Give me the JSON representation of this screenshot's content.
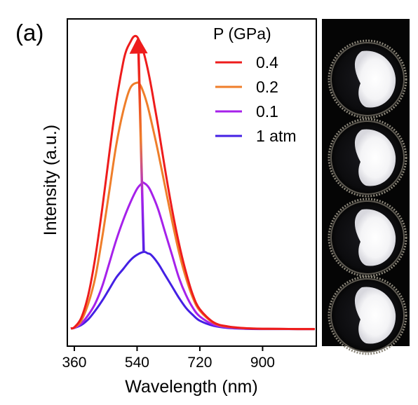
{
  "panel_label": "(a)",
  "colors": {
    "0.4": "#ee1c1c",
    "0.2": "#ef7e2a",
    "0.1": "#a621ea",
    "1 atm": "#4420e4",
    "photo_background": "#050505"
  },
  "chart_data": {
    "type": "line",
    "title": "",
    "xlabel": "Wavelength (nm)",
    "ylabel": "Intensity (a.u.)",
    "xlim": [
      350,
      1050
    ],
    "ylim": [
      0,
      1.07
    ],
    "x_ticks": [
      360,
      540,
      720,
      900
    ],
    "x_tick_labels": [
      "360",
      "540",
      "720",
      "900"
    ],
    "y_ticks_visible": false,
    "grid": false,
    "legend_title": "P (GPa)",
    "legend_position": "top-right",
    "series": [
      {
        "name": "0.4",
        "color": "#ee1c1c",
        "x": [
          350,
          360,
          380,
          400,
          420,
          440,
          460,
          480,
          500,
          510,
          520,
          530,
          540,
          550,
          560,
          570,
          580,
          590,
          600,
          620,
          640,
          660,
          680,
          700,
          720,
          760,
          800,
          850,
          900,
          1000,
          1050
        ],
        "y": [
          0.003,
          0.007,
          0.04,
          0.12,
          0.25,
          0.42,
          0.61,
          0.79,
          0.93,
          0.975,
          1.0,
          1.02,
          1.02,
          0.995,
          0.96,
          0.91,
          0.85,
          0.78,
          0.71,
          0.56,
          0.42,
          0.3,
          0.2,
          0.12,
          0.07,
          0.024,
          0.01,
          0.004,
          0.002,
          0.001,
          0.001
        ]
      },
      {
        "name": "0.2",
        "color": "#ef7e2a",
        "x": [
          350,
          360,
          380,
          400,
          420,
          440,
          460,
          480,
          500,
          520,
          540,
          550,
          560,
          570,
          580,
          600,
          620,
          640,
          660,
          680,
          700,
          720,
          760,
          800,
          850,
          900,
          1000,
          1050
        ],
        "y": [
          0.003,
          0.006,
          0.03,
          0.09,
          0.18,
          0.32,
          0.48,
          0.64,
          0.76,
          0.84,
          0.86,
          0.85,
          0.82,
          0.78,
          0.73,
          0.62,
          0.5,
          0.38,
          0.27,
          0.18,
          0.11,
          0.065,
          0.022,
          0.009,
          0.004,
          0.002,
          0.001,
          0.001
        ]
      },
      {
        "name": "0.1",
        "color": "#a621ea",
        "x": [
          350,
          360,
          380,
          400,
          420,
          440,
          460,
          480,
          500,
          520,
          540,
          555,
          560,
          570,
          580,
          600,
          620,
          640,
          660,
          680,
          700,
          720,
          760,
          800,
          850,
          900,
          1000,
          1050
        ],
        "y": [
          0.003,
          0.005,
          0.02,
          0.05,
          0.09,
          0.15,
          0.23,
          0.31,
          0.38,
          0.44,
          0.49,
          0.51,
          0.51,
          0.5,
          0.48,
          0.42,
          0.34,
          0.26,
          0.18,
          0.12,
          0.075,
          0.045,
          0.016,
          0.007,
          0.003,
          0.002,
          0.001,
          0.001
        ]
      },
      {
        "name": "1 atm",
        "color": "#4420e4",
        "x": [
          350,
          360,
          380,
          400,
          420,
          440,
          460,
          480,
          500,
          520,
          540,
          560,
          570,
          580,
          600,
          620,
          640,
          660,
          680,
          700,
          720,
          760,
          800,
          850,
          900,
          1000,
          1050
        ],
        "y": [
          0.003,
          0.005,
          0.015,
          0.035,
          0.065,
          0.1,
          0.14,
          0.18,
          0.21,
          0.24,
          0.26,
          0.27,
          0.265,
          0.26,
          0.23,
          0.19,
          0.15,
          0.11,
          0.075,
          0.05,
          0.03,
          0.012,
          0.005,
          0.002,
          0.001,
          0.001,
          0.001
        ]
      }
    ],
    "annotations": [
      {
        "type": "arrow",
        "description": "gradient arrow from 1 atm peak to 0.4 GPa peak",
        "from": [
          559,
          0.27
        ],
        "to": [
          543,
          1.02
        ]
      }
    ]
  },
  "photo_panel": {
    "count": 4
  }
}
